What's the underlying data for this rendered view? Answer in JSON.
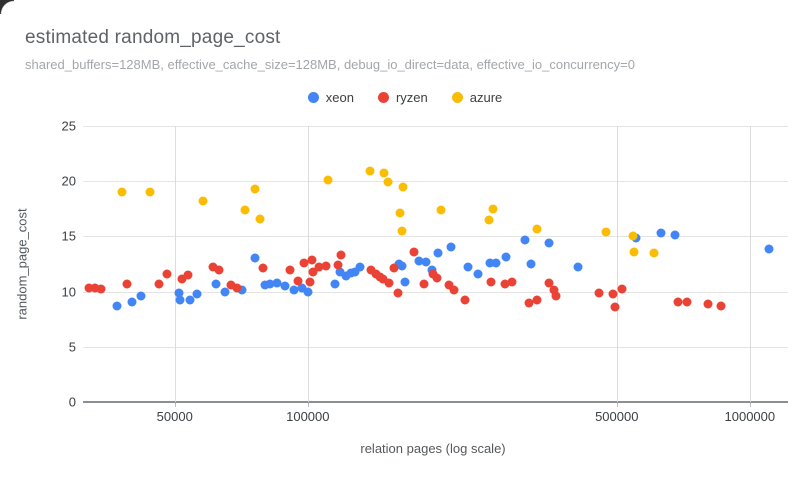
{
  "chart": {
    "title": "estimated random_page_cost",
    "subtitle": "shared_buffers=128MB, effective_cache_size=128MB, debug_io_direct=data, effective_io_concurrency=0"
  },
  "chart_data": {
    "type": "scatter",
    "title": "estimated random_page_cost",
    "subtitle": "shared_buffers=128MB, effective_cache_size=128MB, debug_io_direct=data, effective_io_concurrency=0",
    "xlabel": "relation pages (log scale)",
    "ylabel": "random_page_cost",
    "x_scale": "log",
    "xlim": [
      31000,
      1220000
    ],
    "ylim": [
      0,
      25
    ],
    "x_ticks": [
      50000,
      100000,
      500000,
      1000000
    ],
    "x_tick_labels": [
      "50000",
      "100000",
      "500000",
      "1000000"
    ],
    "y_ticks": [
      0,
      5,
      10,
      15,
      20,
      25
    ],
    "y_tick_labels": [
      "0",
      "5",
      "10",
      "15",
      "20",
      "25"
    ],
    "grid": true,
    "legend_position": "top",
    "series": [
      {
        "name": "xeon",
        "color": "#4285F4",
        "points": [
          [
            37000,
            8.7
          ],
          [
            40000,
            9.1
          ],
          [
            42000,
            9.6
          ],
          [
            51000,
            9.9
          ],
          [
            51500,
            9.2
          ],
          [
            54000,
            9.2
          ],
          [
            56000,
            9.8
          ],
          [
            62000,
            10.7
          ],
          [
            65000,
            10.0
          ],
          [
            71000,
            10.1
          ],
          [
            76000,
            13.0
          ],
          [
            80000,
            10.6
          ],
          [
            82000,
            10.7
          ],
          [
            85000,
            10.8
          ],
          [
            89000,
            10.5
          ],
          [
            93000,
            10.1
          ],
          [
            97000,
            10.3
          ],
          [
            100000,
            10.0
          ],
          [
            115000,
            10.7
          ],
          [
            118000,
            11.8
          ],
          [
            122000,
            11.4
          ],
          [
            125000,
            11.7
          ],
          [
            128000,
            11.8
          ],
          [
            131000,
            12.2
          ],
          [
            161000,
            12.5
          ],
          [
            163000,
            12.3
          ],
          [
            166000,
            10.9
          ],
          [
            178000,
            12.8
          ],
          [
            185000,
            12.7
          ],
          [
            191000,
            12.0
          ],
          [
            197000,
            13.5
          ],
          [
            211000,
            14.0
          ],
          [
            230000,
            12.2
          ],
          [
            243000,
            11.6
          ],
          [
            258000,
            12.6
          ],
          [
            267000,
            12.6
          ],
          [
            281000,
            13.1
          ],
          [
            310000,
            14.7
          ],
          [
            319000,
            12.5
          ],
          [
            352000,
            14.4
          ],
          [
            408000,
            12.2
          ],
          [
            553000,
            14.9
          ],
          [
            630000,
            15.3
          ],
          [
            676000,
            15.1
          ],
          [
            1106000,
            13.9
          ]
        ]
      },
      {
        "name": "ryzen",
        "color": "#EA4335",
        "points": [
          [
            32000,
            10.3
          ],
          [
            33000,
            10.3
          ],
          [
            34000,
            10.2
          ],
          [
            39000,
            10.7
          ],
          [
            46000,
            10.7
          ],
          [
            48000,
            11.6
          ],
          [
            52000,
            11.1
          ],
          [
            53500,
            11.5
          ],
          [
            61000,
            12.2
          ],
          [
            63000,
            12.0
          ],
          [
            67000,
            10.6
          ],
          [
            69000,
            10.3
          ],
          [
            79000,
            12.1
          ],
          [
            91000,
            12.0
          ],
          [
            95000,
            11.0
          ],
          [
            98000,
            12.6
          ],
          [
            101000,
            10.9
          ],
          [
            102000,
            12.9
          ],
          [
            103000,
            11.8
          ],
          [
            106000,
            12.2
          ],
          [
            110000,
            12.3
          ],
          [
            117000,
            12.4
          ],
          [
            119000,
            13.3
          ],
          [
            139000,
            12.0
          ],
          [
            143000,
            11.6
          ],
          [
            146000,
            11.3
          ],
          [
            148000,
            11.1
          ],
          [
            153000,
            10.8
          ],
          [
            157000,
            12.1
          ],
          [
            160000,
            9.9
          ],
          [
            174000,
            13.6
          ],
          [
            183000,
            10.7
          ],
          [
            192000,
            11.6
          ],
          [
            196000,
            11.2
          ],
          [
            209000,
            10.6
          ],
          [
            214000,
            10.1
          ],
          [
            227000,
            9.2
          ],
          [
            259000,
            10.9
          ],
          [
            279000,
            10.7
          ],
          [
            290000,
            10.9
          ],
          [
            317000,
            9.0
          ],
          [
            330000,
            9.2
          ],
          [
            352000,
            10.8
          ],
          [
            360000,
            10.1
          ],
          [
            364000,
            9.6
          ],
          [
            455000,
            9.9
          ],
          [
            490000,
            9.8
          ],
          [
            496000,
            8.6
          ],
          [
            514000,
            10.2
          ],
          [
            687000,
            9.1
          ],
          [
            720000,
            9.1
          ],
          [
            806000,
            8.9
          ],
          [
            861000,
            8.7
          ]
        ]
      },
      {
        "name": "azure",
        "color": "#FBBC04",
        "points": [
          [
            38000,
            19.0
          ],
          [
            44000,
            19.0
          ],
          [
            58000,
            18.2
          ],
          [
            72000,
            17.4
          ],
          [
            76000,
            19.3
          ],
          [
            78000,
            16.6
          ],
          [
            111000,
            20.1
          ],
          [
            138000,
            20.9
          ],
          [
            149000,
            20.7
          ],
          [
            152000,
            19.9
          ],
          [
            162000,
            17.1
          ],
          [
            163000,
            15.5
          ],
          [
            164000,
            19.5
          ],
          [
            200000,
            17.4
          ],
          [
            257000,
            16.5
          ],
          [
            263000,
            17.5
          ],
          [
            330000,
            15.7
          ],
          [
            472000,
            15.4
          ],
          [
            543000,
            15.0
          ],
          [
            548000,
            13.6
          ],
          [
            607000,
            13.5
          ]
        ]
      }
    ]
  }
}
